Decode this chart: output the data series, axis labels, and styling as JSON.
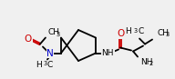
{
  "bg_color": "#f0f0f0",
  "bond_color": "#000000",
  "bond_width": 1.3,
  "atom_colors": {
    "N": "#0000cc",
    "O": "#cc0000",
    "C": "#000000"
  },
  "font_size_main": 6.5,
  "font_size_sub": 4.8,
  "figsize": [
    1.92,
    0.87
  ],
  "dpi": 100,
  "xlim": [
    0,
    192
  ],
  "ylim": [
    0,
    87
  ]
}
